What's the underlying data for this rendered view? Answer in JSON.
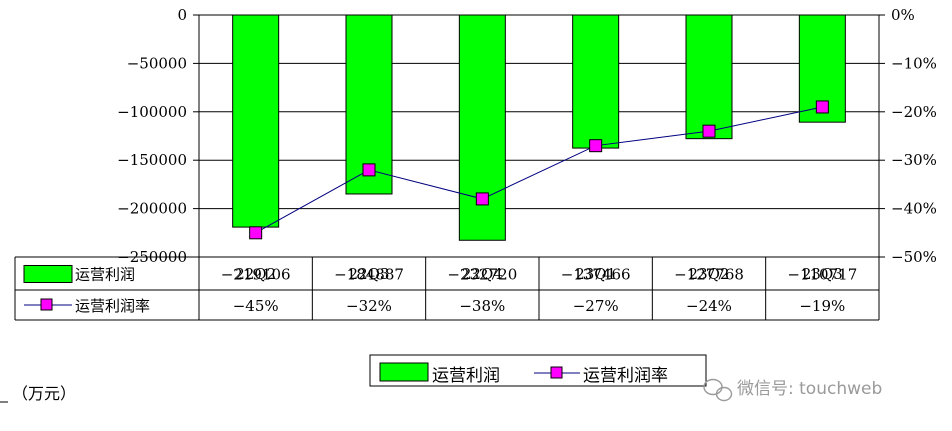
{
  "chart_data": {
    "type": "bar",
    "categories": [
      "22Q2",
      "22Q3",
      "22Q4",
      "23Q1",
      "23Q2",
      "23Q3"
    ],
    "series": [
      {
        "name": "运营利润",
        "type": "bar",
        "axis": "left",
        "values": [
          -219106,
          -184887,
          -232720,
          -137466,
          -127768,
          -110717
        ]
      },
      {
        "name": "运营利润率",
        "type": "line",
        "axis": "right",
        "values": [
          -45,
          -32,
          -38,
          -27,
          -24,
          -19
        ]
      }
    ],
    "table_rows": [
      {
        "label": "运营利润",
        "cells": [
          "−219106",
          "−184887",
          "−232720",
          "−137466",
          "−127768",
          "−110717"
        ]
      },
      {
        "label": "运营利润率",
        "cells": [
          "−45%",
          "−32%",
          "−38%",
          "−27%",
          "−24%",
          "−19%"
        ]
      }
    ],
    "ylim": [
      -250000,
      0
    ],
    "y_ticks": [
      0,
      -50000,
      -100000,
      -150000,
      -200000,
      -250000
    ],
    "y_tick_labels": [
      "0",
      "−50000",
      "−100000",
      "−150000",
      "−200000",
      "−250000"
    ],
    "y2lim": [
      -50,
      0
    ],
    "y2_ticks": [
      0,
      -10,
      -20,
      -30,
      -40,
      -50
    ],
    "y2_tick_labels": [
      "0%",
      "−10%",
      "−20%",
      "−30%",
      "−40%",
      "−50%"
    ],
    "grid": true,
    "legend": [
      "运营利润",
      "运营利润率"
    ],
    "legend_position": "bottom",
    "unit_note": "（万元）",
    "watermark": "微信号: touchweb",
    "colors": {
      "bar": "#00ff00",
      "line": "#000080",
      "marker": "#ff00ff"
    }
  }
}
